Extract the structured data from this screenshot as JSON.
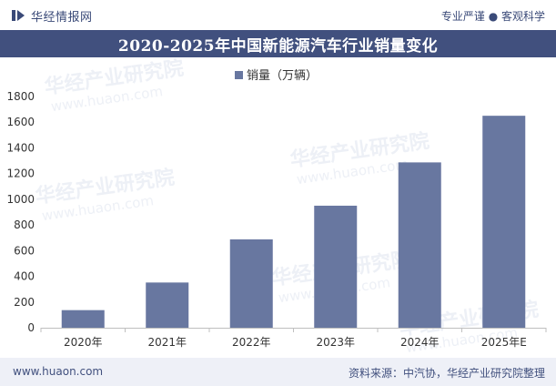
{
  "header": {
    "brand": "华经情报网",
    "slogan": "专业严谨 ● 客观科学"
  },
  "watermark": {
    "cn": "华经产业研究院",
    "url": "www.huaon.com"
  },
  "footer": {
    "website": "www.huaon.com",
    "source": "资料来源：中汽协，华经产业研究院整理"
  },
  "colors": {
    "bar": "#6877a0",
    "title_band": "#41507e",
    "text": "#333333"
  },
  "chart_data": {
    "type": "bar",
    "title": "2020-2025年中国新能源汽车行业销量变化",
    "legend": "销量（万辆）",
    "legend_position": "top-center",
    "categories": [
      "2020年",
      "2021年",
      "2022年",
      "2023年",
      "2024年",
      "2025年E"
    ],
    "values": [
      137,
      352,
      688,
      950,
      1287,
      1650
    ],
    "ylim": [
      0,
      1800
    ],
    "yticks": [
      0,
      200,
      400,
      600,
      800,
      1000,
      1200,
      1400,
      1600,
      1800
    ],
    "xlabel": "",
    "ylabel": "",
    "grid": false
  }
}
